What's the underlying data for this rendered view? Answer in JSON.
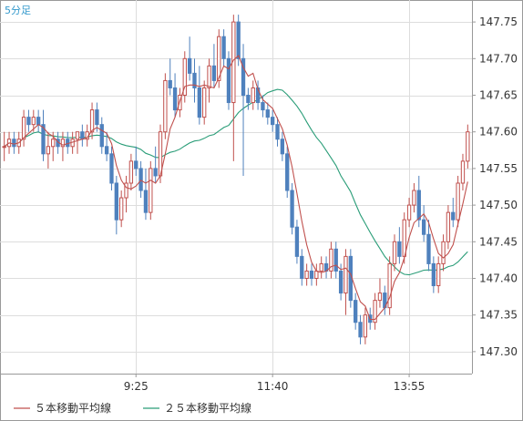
{
  "timeframe_label": "5分足",
  "colors": {
    "up": "#c0504d",
    "down": "#4f81bd",
    "ma5": "#c0504d",
    "ma25": "#2a9d78",
    "grid": "#dddddd",
    "frame": "#999999"
  },
  "chart_data": {
    "type": "candlestick",
    "grid": true,
    "legend_position": "bottom-left",
    "y_axis": {
      "position": "right",
      "min": 147.27,
      "max": 147.78,
      "ticks": [
        147.3,
        147.35,
        147.4,
        147.45,
        147.5,
        147.55,
        147.6,
        147.65,
        147.7,
        147.75
      ],
      "tick_labels": [
        "147.30",
        "147.35",
        "147.40",
        "147.45",
        "147.50",
        "147.55",
        "147.60",
        "147.65",
        "147.70",
        "147.75"
      ]
    },
    "x_axis": {
      "labels": [
        {
          "index": 27,
          "label": "9:25"
        },
        {
          "index": 55,
          "label": "11:40"
        },
        {
          "index": 83,
          "label": "13:55"
        }
      ]
    },
    "series": [
      {
        "name": "５本移動平均線",
        "color": "#c0504d"
      },
      {
        "name": "２５本移動平均線",
        "color": "#2a9d78"
      }
    ],
    "ohlc": [
      [
        147.58,
        147.6,
        147.56,
        147.58
      ],
      [
        147.58,
        147.6,
        147.57,
        147.59
      ],
      [
        147.59,
        147.6,
        147.57,
        147.58
      ],
      [
        147.58,
        147.6,
        147.57,
        147.59
      ],
      [
        147.59,
        147.63,
        147.58,
        147.62
      ],
      [
        147.62,
        147.63,
        147.6,
        147.61
      ],
      [
        147.61,
        147.63,
        147.6,
        147.62
      ],
      [
        147.62,
        147.63,
        147.6,
        147.61
      ],
      [
        147.61,
        147.63,
        147.56,
        147.57
      ],
      [
        147.57,
        147.6,
        147.55,
        147.58
      ],
      [
        147.58,
        147.6,
        147.56,
        147.59
      ],
      [
        147.59,
        147.6,
        147.57,
        147.58
      ],
      [
        147.58,
        147.6,
        147.56,
        147.59
      ],
      [
        147.59,
        147.6,
        147.57,
        147.58
      ],
      [
        147.58,
        147.6,
        147.57,
        147.59
      ],
      [
        147.59,
        147.6,
        147.57,
        147.6
      ],
      [
        147.6,
        147.61,
        147.58,
        147.59
      ],
      [
        147.59,
        147.61,
        147.58,
        147.6
      ],
      [
        147.6,
        147.64,
        147.59,
        147.63
      ],
      [
        147.63,
        147.64,
        147.6,
        147.61
      ],
      [
        147.61,
        147.62,
        147.57,
        147.58
      ],
      [
        147.58,
        147.6,
        147.56,
        147.57
      ],
      [
        147.57,
        147.58,
        147.52,
        147.53
      ],
      [
        147.53,
        147.54,
        147.46,
        147.48
      ],
      [
        147.48,
        147.52,
        147.47,
        147.51
      ],
      [
        147.51,
        147.54,
        147.49,
        147.53
      ],
      [
        147.53,
        147.57,
        147.52,
        147.56
      ],
      [
        147.56,
        147.58,
        147.54,
        147.55
      ],
      [
        147.55,
        147.56,
        147.51,
        147.52
      ],
      [
        147.52,
        147.55,
        147.48,
        147.49
      ],
      [
        147.49,
        147.56,
        147.48,
        147.55
      ],
      [
        147.55,
        147.58,
        147.53,
        147.54
      ],
      [
        147.54,
        147.61,
        147.53,
        147.6
      ],
      [
        147.6,
        147.68,
        147.59,
        147.67
      ],
      [
        147.67,
        147.7,
        147.65,
        147.66
      ],
      [
        147.66,
        147.68,
        147.62,
        147.63
      ],
      [
        147.63,
        147.66,
        147.62,
        147.65
      ],
      [
        147.65,
        147.71,
        147.64,
        147.7
      ],
      [
        147.7,
        147.73,
        147.67,
        147.68
      ],
      [
        147.68,
        147.7,
        147.64,
        147.66
      ],
      [
        147.66,
        147.69,
        147.61,
        147.62
      ],
      [
        147.62,
        147.67,
        147.61,
        147.66
      ],
      [
        147.66,
        147.7,
        147.64,
        147.69
      ],
      [
        147.69,
        147.72,
        147.66,
        147.67
      ],
      [
        147.67,
        147.74,
        147.66,
        147.73
      ],
      [
        147.73,
        147.74,
        147.69,
        147.7
      ],
      [
        147.7,
        147.71,
        147.63,
        147.64
      ],
      [
        147.64,
        147.76,
        147.56,
        147.75
      ],
      [
        147.75,
        147.76,
        147.69,
        147.7
      ],
      [
        147.7,
        147.72,
        147.54,
        147.65
      ],
      [
        147.65,
        147.66,
        147.63,
        147.64
      ],
      [
        147.64,
        147.67,
        147.63,
        147.66
      ],
      [
        147.66,
        147.67,
        147.63,
        147.64
      ],
      [
        147.64,
        147.65,
        147.62,
        147.63
      ],
      [
        147.63,
        147.64,
        147.61,
        147.62
      ],
      [
        147.62,
        147.63,
        147.6,
        147.61
      ],
      [
        147.61,
        147.62,
        147.58,
        147.59
      ],
      [
        147.59,
        147.6,
        147.56,
        147.57
      ],
      [
        147.57,
        147.58,
        147.51,
        147.52
      ],
      [
        147.52,
        147.53,
        147.46,
        147.47
      ],
      [
        147.47,
        147.48,
        147.42,
        147.43
      ],
      [
        147.43,
        147.44,
        147.39,
        147.4
      ],
      [
        147.4,
        147.42,
        147.39,
        147.41
      ],
      [
        147.41,
        147.42,
        147.39,
        147.4
      ],
      [
        147.4,
        147.42,
        147.39,
        147.41
      ],
      [
        147.41,
        147.43,
        147.4,
        147.42
      ],
      [
        147.42,
        147.43,
        147.4,
        147.41
      ],
      [
        147.41,
        147.45,
        147.4,
        147.44
      ],
      [
        147.44,
        147.45,
        147.4,
        147.41
      ],
      [
        147.41,
        147.42,
        147.37,
        147.38
      ],
      [
        147.38,
        147.44,
        147.35,
        147.43
      ],
      [
        147.43,
        147.44,
        147.36,
        147.37
      ],
      [
        147.37,
        147.38,
        147.33,
        147.34
      ],
      [
        147.34,
        147.35,
        147.31,
        147.32
      ],
      [
        147.32,
        147.36,
        147.31,
        147.35
      ],
      [
        147.35,
        147.36,
        147.33,
        147.34
      ],
      [
        147.34,
        147.38,
        147.33,
        147.37
      ],
      [
        147.37,
        147.4,
        147.36,
        147.38
      ],
      [
        147.38,
        147.39,
        147.35,
        147.36
      ],
      [
        147.36,
        147.43,
        147.35,
        147.42
      ],
      [
        147.42,
        147.46,
        147.41,
        147.45
      ],
      [
        147.45,
        147.47,
        147.42,
        147.43
      ],
      [
        147.43,
        147.49,
        147.42,
        147.48
      ],
      [
        147.48,
        147.51,
        147.47,
        147.5
      ],
      [
        147.5,
        147.53,
        147.49,
        147.52
      ],
      [
        147.52,
        147.54,
        147.47,
        147.48
      ],
      [
        147.48,
        147.5,
        147.45,
        147.46
      ],
      [
        147.46,
        147.48,
        147.41,
        147.42
      ],
      [
        147.42,
        147.43,
        147.38,
        147.39
      ],
      [
        147.39,
        147.43,
        147.38,
        147.42
      ],
      [
        147.42,
        147.46,
        147.41,
        147.45
      ],
      [
        147.45,
        147.5,
        147.44,
        147.49
      ],
      [
        147.49,
        147.51,
        147.47,
        147.48
      ],
      [
        147.48,
        147.54,
        147.47,
        147.53
      ],
      [
        147.53,
        147.57,
        147.52,
        147.56
      ],
      [
        147.56,
        147.61,
        147.55,
        147.6
      ]
    ]
  },
  "legend": {
    "ma5_label": "５本移動平均線",
    "ma25_label": "２５本移動平均線"
  }
}
